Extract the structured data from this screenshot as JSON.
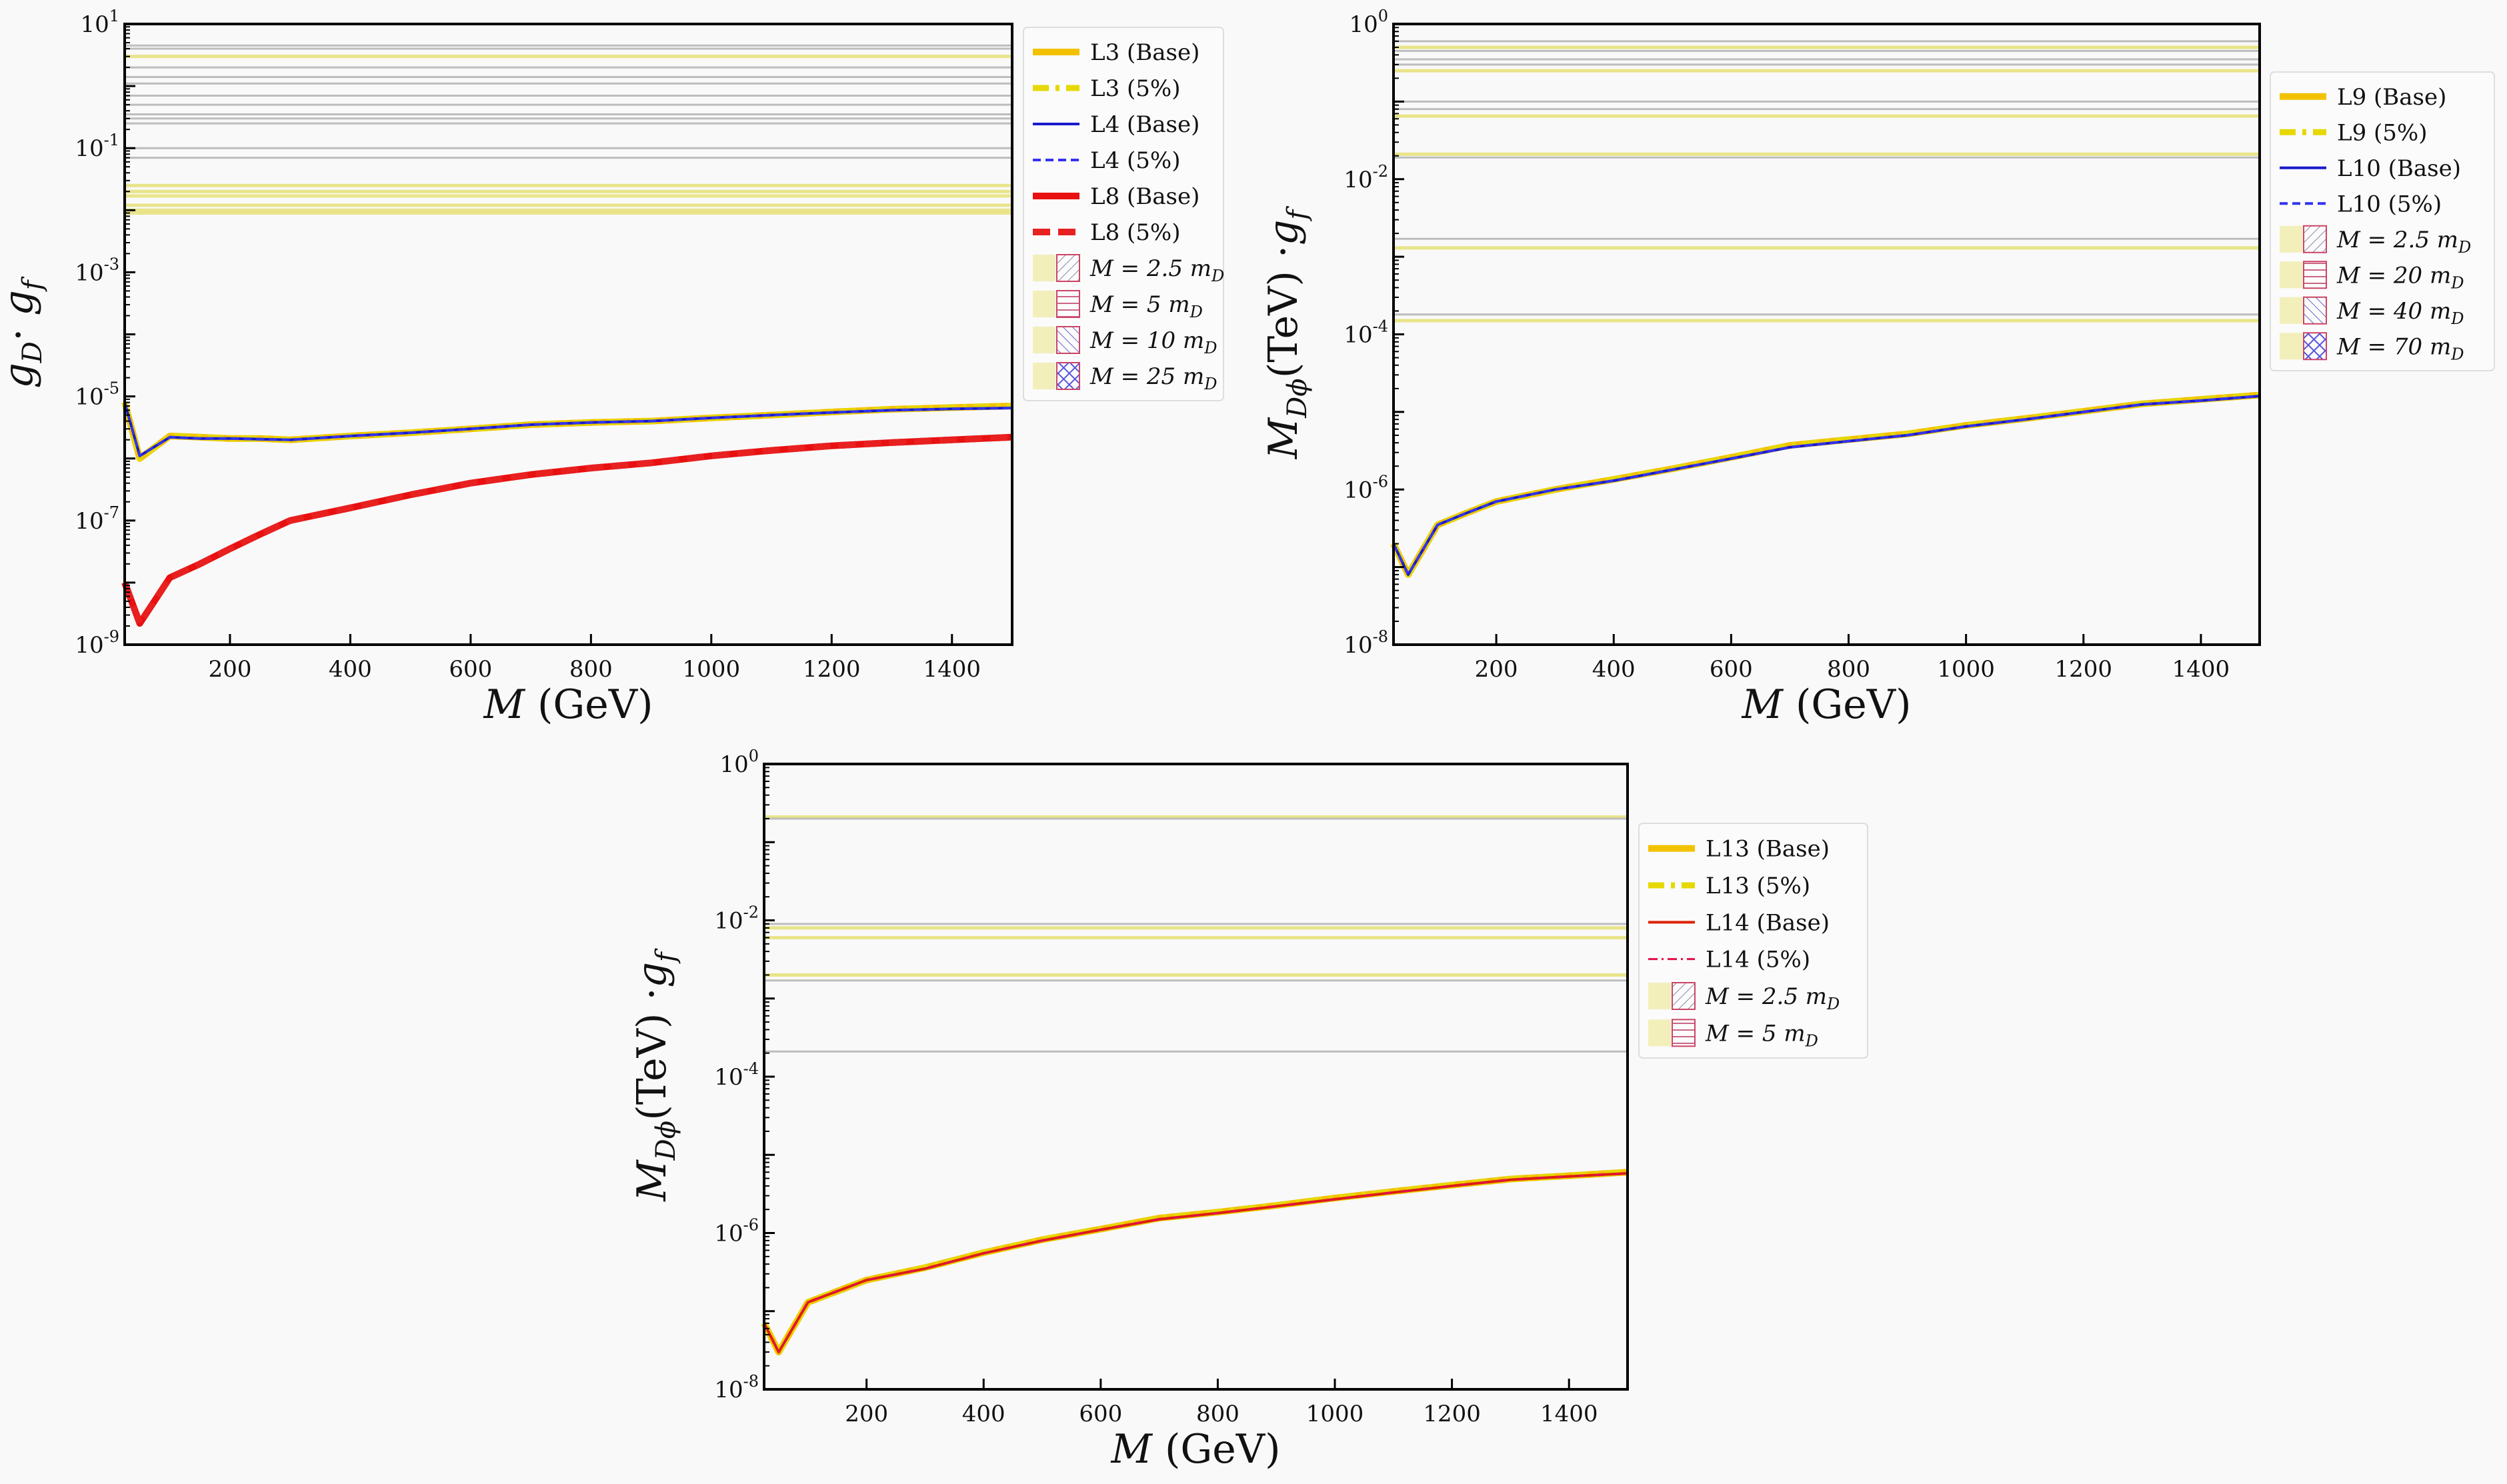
{
  "chart_data": [
    {
      "type": "line",
      "id": "top-left",
      "xlabel": {
        "italic": "M",
        "rest": " (GeV)"
      },
      "ylabel": {
        "parts": [
          [
            "g",
            "D"
          ],
          [
            " · ",
            ""
          ],
          [
            "g",
            "f"
          ]
        ]
      },
      "xlim": [
        25,
        1500
      ],
      "ylim": [
        1e-09,
        10
      ],
      "yscale": "log",
      "xticks": [
        200,
        400,
        600,
        800,
        1000,
        1200,
        1400
      ],
      "yticks_exp": [
        1,
        -1,
        -3,
        -5,
        -7,
        -9
      ],
      "x": [
        25,
        50,
        100,
        150,
        200,
        250,
        300,
        400,
        500,
        600,
        700,
        800,
        900,
        1000,
        1100,
        1200,
        1300,
        1400,
        1500
      ],
      "series": [
        {
          "name": "L3 (Base)",
          "color": "#f2c200",
          "style": "thick",
          "values": [
            8e-06,
            1e-06,
            2.3e-06,
            2.2e-06,
            2.1e-06,
            2.1e-06,
            2e-06,
            2.3e-06,
            2.6e-06,
            3e-06,
            3.5e-06,
            3.8e-06,
            4e-06,
            4.5e-06,
            5e-06,
            5.6e-06,
            6.2e-06,
            6.6e-06,
            7e-06
          ]
        },
        {
          "name": "L3 (5%)",
          "color": "#e6d800",
          "style": "dashdot",
          "values": [
            8e-06,
            1e-06,
            2.3e-06,
            2.2e-06,
            2.1e-06,
            2.1e-06,
            2e-06,
            2.3e-06,
            2.6e-06,
            3e-06,
            3.5e-06,
            3.8e-06,
            4e-06,
            4.5e-06,
            5e-06,
            5.6e-06,
            6.2e-06,
            6.6e-06,
            7e-06
          ]
        },
        {
          "name": "L4 (Base)",
          "color": "#1a1acc",
          "style": "thin",
          "values": [
            8e-06,
            1.1e-06,
            2.2e-06,
            2.1e-06,
            2.1e-06,
            2.05e-06,
            2e-06,
            2.3e-06,
            2.6e-06,
            3e-06,
            3.5e-06,
            3.8e-06,
            4e-06,
            4.5e-06,
            5e-06,
            5.5e-06,
            6e-06,
            6.3e-06,
            6.5e-06
          ]
        },
        {
          "name": "L4 (5%)",
          "color": "#3333ee",
          "style": "dashed",
          "values": [
            8e-06,
            1.1e-06,
            2.2e-06,
            2.1e-06,
            2.1e-06,
            2.05e-06,
            2e-06,
            2.3e-06,
            2.6e-06,
            3e-06,
            3.5e-06,
            3.8e-06,
            4e-06,
            4.5e-06,
            5e-06,
            5.5e-06,
            6e-06,
            6.3e-06,
            6.5e-06
          ]
        },
        {
          "name": "L8 (Base)",
          "color": "#e81010",
          "style": "thick",
          "values": [
            1e-08,
            2.2e-09,
            1.2e-08,
            2e-08,
            3.5e-08,
            6e-08,
            1e-07,
            1.6e-07,
            2.6e-07,
            4e-07,
            5.5e-07,
            7e-07,
            8.5e-07,
            1.1e-06,
            1.35e-06,
            1.6e-06,
            1.8e-06,
            2e-06,
            2.2e-06
          ]
        },
        {
          "name": "L8 (5%)",
          "color": "#e82020",
          "style": "thickdashed",
          "values": [
            1e-08,
            2.2e-09,
            1.2e-08,
            2e-08,
            3.5e-08,
            6e-08,
            1e-07,
            1.6e-07,
            2.6e-07,
            4e-07,
            5.5e-07,
            7e-07,
            8.5e-07,
            1.1e-06,
            1.35e-06,
            1.6e-06,
            1.8e-06,
            2e-06,
            2.2e-06
          ]
        }
      ],
      "hlines": [
        {
          "y": 4.5,
          "kind": "gray"
        },
        {
          "y": 4.0,
          "kind": "gray"
        },
        {
          "y": 3.0,
          "kind": "yellow"
        },
        {
          "y": 2.0,
          "kind": "gray"
        },
        {
          "y": 1.4,
          "kind": "gray"
        },
        {
          "y": 1.1,
          "kind": "gray"
        },
        {
          "y": 0.7,
          "kind": "gray"
        },
        {
          "y": 0.5,
          "kind": "gray"
        },
        {
          "y": 0.35,
          "kind": "gray"
        },
        {
          "y": 0.3,
          "kind": "gray"
        },
        {
          "y": 0.25,
          "kind": "gray"
        },
        {
          "y": 0.1,
          "kind": "gray"
        },
        {
          "y": 0.07,
          "kind": "gray"
        },
        {
          "y": 0.025,
          "kind": "yellow"
        },
        {
          "y": 0.02,
          "kind": "yellow"
        },
        {
          "y": 0.017,
          "kind": "yellow"
        },
        {
          "y": 0.012,
          "kind": "yellow"
        },
        {
          "y": 0.01,
          "kind": "yellow"
        },
        {
          "y": 0.009,
          "kind": "yellow"
        }
      ],
      "legend": {
        "placement": "outside-right",
        "lines": [
          "L3 (Base)",
          "L3 (5%)",
          "L4 (Base)",
          "L4 (5%)",
          "L8 (Base)",
          "L8 (5%)"
        ],
        "patches": [
          {
            "text": "M = 2.5 m",
            "sub": "D",
            "hatch": "diag"
          },
          {
            "text": "M = 5 m",
            "sub": "D",
            "hatch": "horiz"
          },
          {
            "text": "M = 10 m",
            "sub": "D",
            "hatch": "back"
          },
          {
            "text": "M = 25 m",
            "sub": "D",
            "hatch": "cross"
          }
        ]
      }
    },
    {
      "type": "line",
      "id": "top-right",
      "xlabel": {
        "italic": "M",
        "rest": " (GeV)"
      },
      "ylabel": {
        "parts": [
          [
            "M",
            "Dϕ"
          ],
          [
            "  (TeV) ·",
            ""
          ],
          [
            "g",
            "f"
          ]
        ]
      },
      "xlim": [
        25,
        1500
      ],
      "ylim": [
        1e-08,
        1
      ],
      "yscale": "log",
      "xticks": [
        200,
        400,
        600,
        800,
        1000,
        1200,
        1400
      ],
      "yticks_exp": [
        0,
        -2,
        -4,
        -6,
        -8
      ],
      "x": [
        25,
        50,
        100,
        150,
        200,
        300,
        400,
        500,
        600,
        700,
        800,
        900,
        1000,
        1100,
        1200,
        1300,
        1400,
        1500
      ],
      "series": [
        {
          "name": "L9 (Base)",
          "color": "#f2c200",
          "style": "thick",
          "values": [
            2e-07,
            8e-08,
            3.5e-07,
            5e-07,
            7e-07,
            1e-06,
            1.35e-06,
            1.85e-06,
            2.6e-06,
            3.7e-06,
            4.4e-06,
            5.2e-06,
            6.7e-06,
            8.2e-06,
            1.02e-05,
            1.27e-05,
            1.45e-05,
            1.65e-05
          ]
        },
        {
          "name": "L9 (5%)",
          "color": "#e6d800",
          "style": "dashdot",
          "values": [
            2e-07,
            8e-08,
            3.5e-07,
            5e-07,
            7e-07,
            1e-06,
            1.35e-06,
            1.85e-06,
            2.6e-06,
            3.7e-06,
            4.4e-06,
            5.2e-06,
            6.7e-06,
            8.2e-06,
            1.02e-05,
            1.27e-05,
            1.45e-05,
            1.65e-05
          ]
        },
        {
          "name": "L10 (Base)",
          "color": "#1a1acc",
          "style": "thin",
          "values": [
            2e-07,
            8e-08,
            3.5e-07,
            5e-07,
            7e-07,
            1e-06,
            1.3e-06,
            1.8e-06,
            2.5e-06,
            3.5e-06,
            4.2e-06,
            5e-06,
            6.5e-06,
            8e-06,
            1e-05,
            1.25e-05,
            1.4e-05,
            1.6e-05
          ]
        },
        {
          "name": "L10 (5%)",
          "color": "#3333ee",
          "style": "dashed",
          "values": [
            2e-07,
            8e-08,
            3.5e-07,
            5e-07,
            7e-07,
            1e-06,
            1.3e-06,
            1.8e-06,
            2.5e-06,
            3.5e-06,
            4.2e-06,
            5e-06,
            6.5e-06,
            8e-06,
            1e-05,
            1.25e-05,
            1.4e-05,
            1.6e-05
          ]
        }
      ],
      "hlines": [
        {
          "y": 0.6,
          "kind": "gray"
        },
        {
          "y": 0.5,
          "kind": "yellow"
        },
        {
          "y": 0.45,
          "kind": "gray"
        },
        {
          "y": 0.35,
          "kind": "gray"
        },
        {
          "y": 0.3,
          "kind": "gray"
        },
        {
          "y": 0.25,
          "kind": "yellow"
        },
        {
          "y": 0.1,
          "kind": "gray"
        },
        {
          "y": 0.08,
          "kind": "gray"
        },
        {
          "y": 0.065,
          "kind": "yellow"
        },
        {
          "y": 0.021,
          "kind": "yellow"
        },
        {
          "y": 0.019,
          "kind": "gray"
        },
        {
          "y": 0.0017,
          "kind": "gray"
        },
        {
          "y": 0.0013,
          "kind": "yellow"
        },
        {
          "y": 0.00018,
          "kind": "gray"
        },
        {
          "y": 0.00015,
          "kind": "yellow"
        }
      ],
      "legend": {
        "placement": "outside-right",
        "lines": [
          "L9 (Base)",
          "L9 (5%)",
          "L10 (Base)",
          "L10 (5%)"
        ],
        "patches": [
          {
            "text": "M = 2.5 m",
            "sub": "D",
            "hatch": "diag"
          },
          {
            "text": "M = 20 m",
            "sub": "D",
            "hatch": "horiz"
          },
          {
            "text": "M = 40 m",
            "sub": "D",
            "hatch": "back"
          },
          {
            "text": "M = 70 m",
            "sub": "D",
            "hatch": "cross"
          }
        ]
      }
    },
    {
      "type": "line",
      "id": "bottom",
      "xlabel": {
        "italic": "M",
        "rest": " (GeV)"
      },
      "ylabel": {
        "parts": [
          [
            "M",
            "Dϕ"
          ],
          [
            "  (TeV) ·",
            ""
          ],
          [
            "g",
            "f"
          ]
        ]
      },
      "xlim": [
        25,
        1500
      ],
      "ylim": [
        1e-08,
        1
      ],
      "yscale": "log",
      "xticks": [
        200,
        400,
        600,
        800,
        1000,
        1200,
        1400
      ],
      "yticks_exp": [
        0,
        -2,
        -4,
        -6,
        -8
      ],
      "x": [
        25,
        50,
        100,
        150,
        200,
        300,
        400,
        500,
        600,
        700,
        800,
        900,
        1000,
        1100,
        1200,
        1300,
        1400,
        1500
      ],
      "series": [
        {
          "name": "L13 (Base)",
          "color": "#f2c200",
          "style": "thick",
          "values": [
            7e-08,
            3e-08,
            1.3e-07,
            1.8e-07,
            2.5e-07,
            3.6e-07,
            5.6e-07,
            8.2e-07,
            1.12e-06,
            1.55e-06,
            1.85e-06,
            2.25e-06,
            2.8e-06,
            3.4e-06,
            4.1e-06,
            4.9e-06,
            5.4e-06,
            6e-06
          ]
        },
        {
          "name": "L13 (5%)",
          "color": "#e6d800",
          "style": "dashdot",
          "values": [
            7e-08,
            3e-08,
            1.3e-07,
            1.8e-07,
            2.5e-07,
            3.6e-07,
            5.6e-07,
            8.2e-07,
            1.12e-06,
            1.55e-06,
            1.85e-06,
            2.25e-06,
            2.8e-06,
            3.4e-06,
            4.1e-06,
            4.9e-06,
            5.4e-06,
            6e-06
          ]
        },
        {
          "name": "L14 (Base)",
          "color": "#dd2200",
          "style": "thin",
          "values": [
            7e-08,
            3e-08,
            1.3e-07,
            1.8e-07,
            2.5e-07,
            3.5e-07,
            5.5e-07,
            8e-07,
            1.1e-06,
            1.5e-06,
            1.8e-06,
            2.2e-06,
            2.7e-06,
            3.3e-06,
            4e-06,
            4.8e-06,
            5.3e-06,
            5.8e-06
          ]
        },
        {
          "name": "L14 (5%)",
          "color": "#e0104a",
          "style": "thindashdot",
          "values": [
            7e-08,
            3e-08,
            1.3e-07,
            1.8e-07,
            2.5e-07,
            3.5e-07,
            5.5e-07,
            8e-07,
            1.1e-06,
            1.5e-06,
            1.8e-06,
            2.2e-06,
            2.7e-06,
            3.3e-06,
            4e-06,
            4.8e-06,
            5.3e-06,
            5.8e-06
          ]
        }
      ],
      "hlines": [
        {
          "y": 0.21,
          "kind": "yellow"
        },
        {
          "y": 0.2,
          "kind": "gray"
        },
        {
          "y": 0.009,
          "kind": "gray"
        },
        {
          "y": 0.008,
          "kind": "yellow"
        },
        {
          "y": 0.006,
          "kind": "yellow"
        },
        {
          "y": 0.002,
          "kind": "yellow"
        },
        {
          "y": 0.0017,
          "kind": "gray"
        },
        {
          "y": 0.00021,
          "kind": "gray"
        }
      ],
      "legend": {
        "placement": "outside-right",
        "lines": [
          "L13 (Base)",
          "L13 (5%)",
          "L14 (Base)",
          "L14 (5%)"
        ],
        "patches": [
          {
            "text": "M = 2.5 m",
            "sub": "D",
            "hatch": "diag"
          },
          {
            "text": "M = 5 m",
            "sub": "D",
            "hatch": "horiz"
          }
        ]
      }
    }
  ]
}
